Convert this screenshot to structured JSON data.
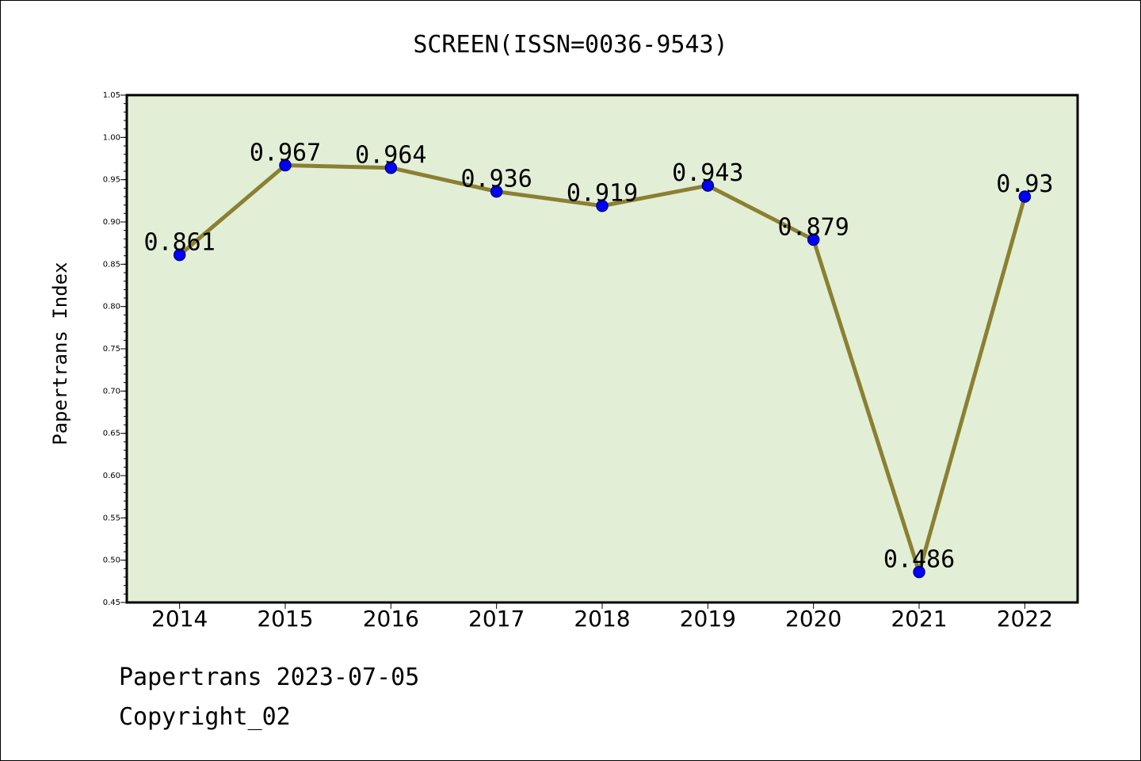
{
  "chart_data": {
    "type": "line",
    "title": "SCREEN(ISSN=0036-9543)",
    "xlabel": "",
    "ylabel": "Papertrans Index",
    "categories": [
      "2014",
      "2015",
      "2016",
      "2017",
      "2018",
      "2019",
      "2020",
      "2021",
      "2022"
    ],
    "values": [
      0.861,
      0.967,
      0.964,
      0.936,
      0.919,
      0.943,
      0.879,
      0.486,
      0.93
    ],
    "data_labels": [
      "0.861",
      "0.967",
      "0.964",
      "0.936",
      "0.919",
      "0.943",
      "0.879",
      "0.486",
      "0.93"
    ],
    "ylim": [
      0.45,
      1.05
    ],
    "yticks": [
      "0.45",
      "0.50",
      "0.55",
      "0.60",
      "0.65",
      "0.70",
      "0.75",
      "0.80",
      "0.85",
      "0.90",
      "0.95",
      "1.00",
      "1.05"
    ],
    "grid": false,
    "legend": "none",
    "colors": {
      "plot_background": "#e2efd6",
      "line": "#8b8032",
      "marker": "#0000ff",
      "marker_edge": "#000080"
    }
  },
  "footer": {
    "line1": "Papertrans 2023-07-05",
    "line2": "Copyright_02"
  }
}
